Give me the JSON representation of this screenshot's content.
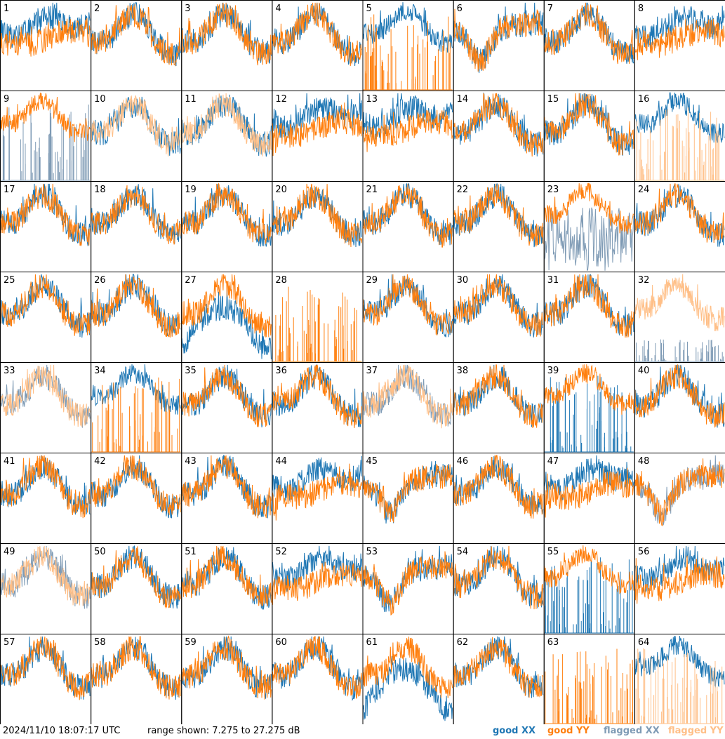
{
  "chart_data": {
    "type": "line",
    "layout": "8x8 small multiples",
    "timestamp": "2024/11/10 18:07:17 UTC",
    "range_label": "range shown: 7.275 to 27.275 dB",
    "ylim": [
      7.275,
      27.275
    ],
    "units": "dB",
    "legend": [
      {
        "label_a": "good ",
        "label_b": "XX",
        "color": "#1f77b4"
      },
      {
        "label_a": "good ",
        "label_b": "YY",
        "color": "#ff7f0e"
      },
      {
        "label_a": "flagged ",
        "label_b": "XX",
        "color": "#7f9bb5"
      },
      {
        "label_a": "flagged ",
        "label_b": "YY",
        "color": "#ffbf87"
      }
    ],
    "colors": {
      "good_xx": "#1f77b4",
      "good_yy": "#ff7f0e",
      "flagged_xx": "#7f9bb5",
      "flagged_yy": "#ffbf87"
    },
    "panels": [
      {
        "id": "1",
        "xx": "good",
        "yy": "good",
        "shape": "flat"
      },
      {
        "id": "2",
        "xx": "good",
        "yy": "good",
        "shape": "wave"
      },
      {
        "id": "3",
        "xx": "good",
        "yy": "good",
        "shape": "wave"
      },
      {
        "id": "4",
        "xx": "good",
        "yy": "good",
        "shape": "wave"
      },
      {
        "id": "5",
        "xx": "good",
        "yy": "good",
        "shape": "yyspikes"
      },
      {
        "id": "6",
        "xx": "good",
        "yy": "good",
        "shape": "dip"
      },
      {
        "id": "7",
        "xx": "good",
        "yy": "good",
        "shape": "wave"
      },
      {
        "id": "8",
        "xx": "good",
        "yy": "good",
        "shape": "flat"
      },
      {
        "id": "9",
        "xx": "flagged",
        "yy": "good",
        "shape": "xxspikes"
      },
      {
        "id": "10",
        "xx": "good",
        "yy": "flagged",
        "shape": "wave"
      },
      {
        "id": "11",
        "xx": "good",
        "yy": "flagged",
        "shape": "wave"
      },
      {
        "id": "12",
        "xx": "good",
        "yy": "good",
        "shape": "flat"
      },
      {
        "id": "13",
        "xx": "good",
        "yy": "good",
        "shape": "flat"
      },
      {
        "id": "14",
        "xx": "good",
        "yy": "good",
        "shape": "wave"
      },
      {
        "id": "15",
        "xx": "good",
        "yy": "good",
        "shape": "wave"
      },
      {
        "id": "16",
        "xx": "good",
        "yy": "flagged",
        "shape": "yyspikes"
      },
      {
        "id": "17",
        "xx": "good",
        "yy": "good",
        "shape": "wave"
      },
      {
        "id": "18",
        "xx": "good",
        "yy": "good",
        "shape": "wave"
      },
      {
        "id": "19",
        "xx": "good",
        "yy": "good",
        "shape": "wave"
      },
      {
        "id": "20",
        "xx": "good",
        "yy": "good",
        "shape": "wave"
      },
      {
        "id": "21",
        "xx": "good",
        "yy": "good",
        "shape": "wave"
      },
      {
        "id": "22",
        "xx": "good",
        "yy": "good",
        "shape": "wave"
      },
      {
        "id": "23",
        "xx": "flagged",
        "yy": "good",
        "shape": "xxnoisy"
      },
      {
        "id": "24",
        "xx": "good",
        "yy": "good",
        "shape": "wave"
      },
      {
        "id": "25",
        "xx": "good",
        "yy": "good",
        "shape": "wave"
      },
      {
        "id": "26",
        "xx": "good",
        "yy": "good",
        "shape": "wave"
      },
      {
        "id": "27",
        "xx": "good",
        "yy": "good",
        "shape": "arc"
      },
      {
        "id": "28",
        "xx": "good",
        "yy": "good",
        "shape": "yyonly"
      },
      {
        "id": "29",
        "xx": "good",
        "yy": "good",
        "shape": "wave"
      },
      {
        "id": "30",
        "xx": "good",
        "yy": "good",
        "shape": "wave"
      },
      {
        "id": "31",
        "xx": "good",
        "yy": "good",
        "shape": "wave"
      },
      {
        "id": "32",
        "xx": "flagged",
        "yy": "flagged",
        "shape": "yywave"
      },
      {
        "id": "33",
        "xx": "flagged",
        "yy": "flagged",
        "shape": "wave"
      },
      {
        "id": "34",
        "xx": "good",
        "yy": "good",
        "shape": "yyspikes"
      },
      {
        "id": "35",
        "xx": "good",
        "yy": "good",
        "shape": "wave"
      },
      {
        "id": "36",
        "xx": "good",
        "yy": "good",
        "shape": "wave"
      },
      {
        "id": "37",
        "xx": "flagged",
        "yy": "flagged",
        "shape": "wave"
      },
      {
        "id": "38",
        "xx": "good",
        "yy": "good",
        "shape": "wave"
      },
      {
        "id": "39",
        "xx": "good",
        "yy": "good",
        "shape": "xxspikes"
      },
      {
        "id": "40",
        "xx": "good",
        "yy": "good",
        "shape": "wave"
      },
      {
        "id": "41",
        "xx": "good",
        "yy": "good",
        "shape": "wave"
      },
      {
        "id": "42",
        "xx": "good",
        "yy": "good",
        "shape": "wave"
      },
      {
        "id": "43",
        "xx": "good",
        "yy": "good",
        "shape": "wave"
      },
      {
        "id": "44",
        "xx": "good",
        "yy": "good",
        "shape": "flat"
      },
      {
        "id": "45",
        "xx": "good",
        "yy": "good",
        "shape": "dip"
      },
      {
        "id": "46",
        "xx": "good",
        "yy": "good",
        "shape": "wave"
      },
      {
        "id": "47",
        "xx": "good",
        "yy": "good",
        "shape": "flat"
      },
      {
        "id": "48",
        "xx": "flagged",
        "yy": "good",
        "shape": "dip"
      },
      {
        "id": "49",
        "xx": "flagged",
        "yy": "flagged",
        "shape": "wave"
      },
      {
        "id": "50",
        "xx": "good",
        "yy": "good",
        "shape": "wave"
      },
      {
        "id": "51",
        "xx": "good",
        "yy": "good",
        "shape": "wave"
      },
      {
        "id": "52",
        "xx": "good",
        "yy": "good",
        "shape": "flat"
      },
      {
        "id": "53",
        "xx": "good",
        "yy": "good",
        "shape": "dip"
      },
      {
        "id": "54",
        "xx": "good",
        "yy": "good",
        "shape": "wave"
      },
      {
        "id": "55",
        "xx": "good",
        "yy": "good",
        "shape": "xxspikes"
      },
      {
        "id": "56",
        "xx": "good",
        "yy": "good",
        "shape": "flat"
      },
      {
        "id": "57",
        "xx": "good",
        "yy": "good",
        "shape": "wave"
      },
      {
        "id": "58",
        "xx": "good",
        "yy": "good",
        "shape": "wave"
      },
      {
        "id": "59",
        "xx": "good",
        "yy": "good",
        "shape": "wave"
      },
      {
        "id": "60",
        "xx": "good",
        "yy": "good",
        "shape": "wave"
      },
      {
        "id": "61",
        "xx": "good",
        "yy": "good",
        "shape": "arc"
      },
      {
        "id": "62",
        "xx": "good",
        "yy": "good",
        "shape": "wave"
      },
      {
        "id": "63",
        "xx": "good",
        "yy": "good",
        "shape": "yyonly"
      },
      {
        "id": "64",
        "xx": "good",
        "yy": "flagged",
        "shape": "yyspikes"
      }
    ]
  }
}
